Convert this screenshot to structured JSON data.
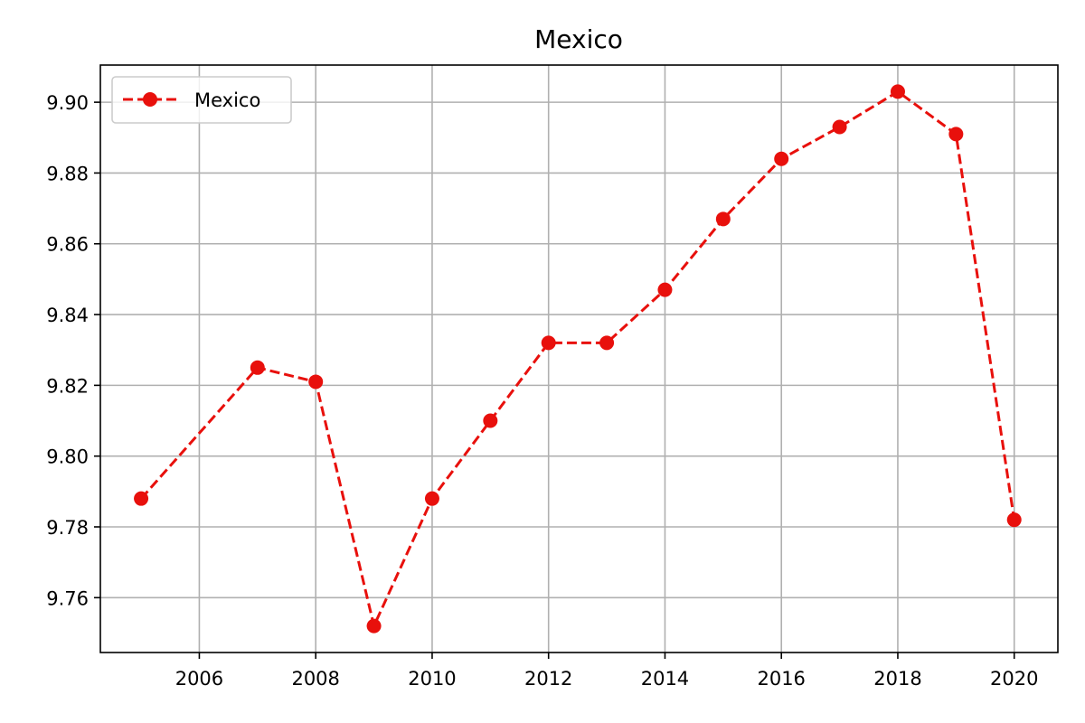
{
  "chart_data": {
    "type": "line",
    "title": "Mexico",
    "xlabel": "",
    "ylabel": "",
    "xlim": [
      2004.3,
      2020.75
    ],
    "ylim": [
      9.7445,
      9.9105
    ],
    "x_ticks": [
      2006,
      2008,
      2010,
      2012,
      2014,
      2016,
      2018,
      2020
    ],
    "x_tick_labels": [
      "2006",
      "2008",
      "2010",
      "2012",
      "2014",
      "2016",
      "2018",
      "2020"
    ],
    "y_ticks": [
      9.76,
      9.78,
      9.8,
      9.82,
      9.84,
      9.86,
      9.88,
      9.9
    ],
    "y_tick_labels": [
      "9.76",
      "9.78",
      "9.80",
      "9.82",
      "9.84",
      "9.86",
      "9.88",
      "9.90"
    ],
    "grid": true,
    "legend_position": "top-left",
    "series": [
      {
        "name": "Mexico",
        "color": "#e8100c",
        "line_style": "dashed",
        "marker": "circle",
        "x": [
          2005,
          2007,
          2008,
          2009,
          2010,
          2011,
          2012,
          2013,
          2014,
          2015,
          2016,
          2017,
          2018,
          2019,
          2020
        ],
        "y": [
          9.788,
          9.825,
          9.821,
          9.752,
          9.788,
          9.81,
          9.832,
          9.832,
          9.847,
          9.867,
          9.884,
          9.893,
          9.903,
          9.891,
          9.782
        ]
      }
    ]
  }
}
